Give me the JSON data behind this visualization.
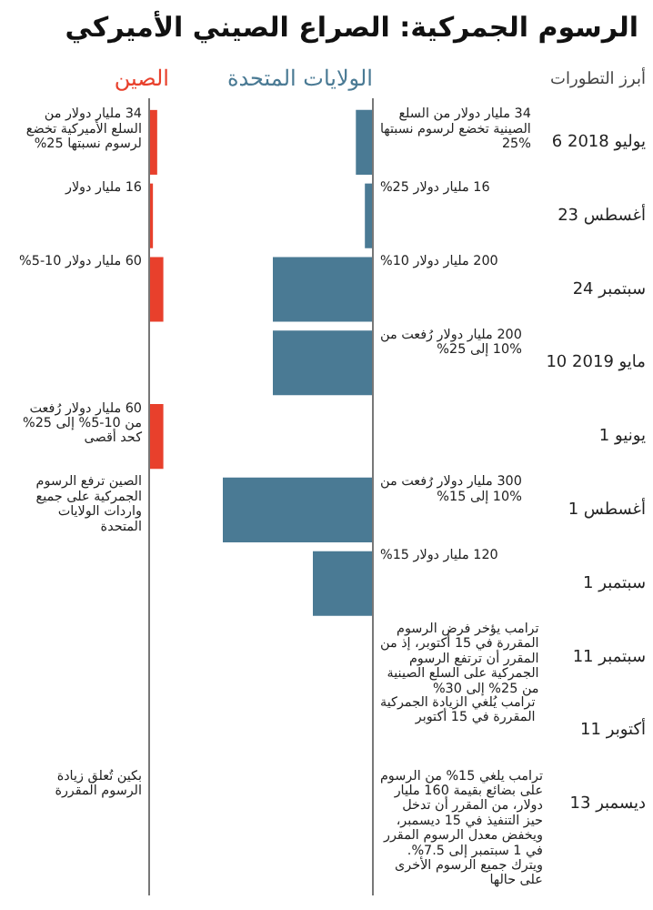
{
  "chart_data": [
    {
      "type": "bar",
      "orientation": "horizontal",
      "title": "الرسوم الجمركية: الصراع الصيني الأميركي",
      "ylabel": "أبرز التطورات",
      "tick_labels": "y",
      "categories": [
        "6 يوليو 2018",
        "23 أغسطس",
        "24 سبتمبر",
        "10 مايو 2019",
        "1 يونيو",
        "1 أغسطس",
        "1 سبتمبر",
        "11 سبتمبر",
        "11 أكتوبر",
        "13 ديسمبر"
      ],
      "series": [
        {
          "name": "الولايات المتحدة",
          "color": "#4a7a94",
          "values": [
            34,
            16,
            200,
            200,
            null,
            300,
            120,
            null,
            null,
            null
          ],
          "value_labels": [
            "34 مليار دولار من السلع الصينية تخضع لرسوم نسبتها 25%",
            "16 مليار دولار 25%",
            "200 مليار دولار 10%",
            "200 مليار دولار رُفعت من 10% إلى 25%",
            null,
            "300 مليار دولار رُفعت من 10% إلى 15%",
            "120 مليار دولار 15%",
            "ترامب يؤخر فرض الرسوم المقررة في 15 أكتوبر، إذ من المقرر أن ترتفع الرسوم الجمركية على السلع الصينية من 25% إلى 30%",
            "ترامب يُلغي الزيادة الجمركية المقررة في 15 أكتوبر",
            "ترامب يلغي 15% من الرسوم على بضائع بقيمة 160 مليار دولار، من المقرر أن تدخل حيز التنفيذ في 15 ديسمبر، ويخفض معدل الرسوم المقرر في 1 سبتمبر إلى 7.5%. ويترك جميع الرسوم الأخرى على حالها"
          ]
        }
      ]
    },
    {
      "type": "bar",
      "orientation": "horizontal",
      "tick_labels": false,
      "categories": [
        null,
        null,
        null,
        null,
        null,
        null,
        null,
        null,
        null,
        null
      ],
      "series": [
        {
          "name": "الصين",
          "color": "#e8402c",
          "values": [
            34,
            16,
            60,
            null,
            60,
            null,
            null,
            null,
            null,
            null
          ],
          "value_labels": [
            "34 مليار دولار من السلع الأميركية تخضع لرسوم نسبتها 25%",
            "16 مليار دولار",
            "60 مليار دولار 10-5%",
            null,
            "60 مليار دولار رُفعت من 10-5% إلى 25% كحد أقصى",
            "الصين ترفع الرسوم الجمركية على جميع واردات الولايات المتحدة",
            null,
            null,
            null,
            "بكين تُعلق زيادة الرسوم المقررة"
          ]
        }
      ]
    }
  ]
}
